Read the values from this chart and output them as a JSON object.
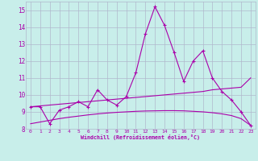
{
  "x": [
    0,
    1,
    2,
    3,
    4,
    5,
    6,
    7,
    8,
    9,
    10,
    11,
    12,
    13,
    14,
    15,
    16,
    17,
    18,
    19,
    20,
    21,
    22,
    23
  ],
  "y_main": [
    9.3,
    9.3,
    8.3,
    9.1,
    9.3,
    9.6,
    9.3,
    10.3,
    9.7,
    9.4,
    9.9,
    11.3,
    13.6,
    15.2,
    14.1,
    12.5,
    10.8,
    12.0,
    12.6,
    11.0,
    10.2,
    9.7,
    9.0,
    8.2
  ],
  "y_upper_trend": [
    9.3,
    9.35,
    9.4,
    9.45,
    9.5,
    9.55,
    9.6,
    9.65,
    9.7,
    9.75,
    9.8,
    9.85,
    9.9,
    9.95,
    10.0,
    10.05,
    10.1,
    10.15,
    10.2,
    10.3,
    10.35,
    10.4,
    10.45,
    11.0
  ],
  "y_lower_trend": [
    8.3,
    8.4,
    8.5,
    8.6,
    8.68,
    8.75,
    8.82,
    8.88,
    8.93,
    8.97,
    9.0,
    9.03,
    9.05,
    9.06,
    9.07,
    9.07,
    9.06,
    9.03,
    9.0,
    8.95,
    8.88,
    8.78,
    8.6,
    8.2
  ],
  "line_color": "#aa00aa",
  "bg_color": "#c8eeea",
  "grid_color": "#b0b8cc",
  "xlabel": "Windchill (Refroidissement éolien,°C)",
  "ylim": [
    8,
    15.5
  ],
  "xlim": [
    -0.5,
    23.5
  ]
}
